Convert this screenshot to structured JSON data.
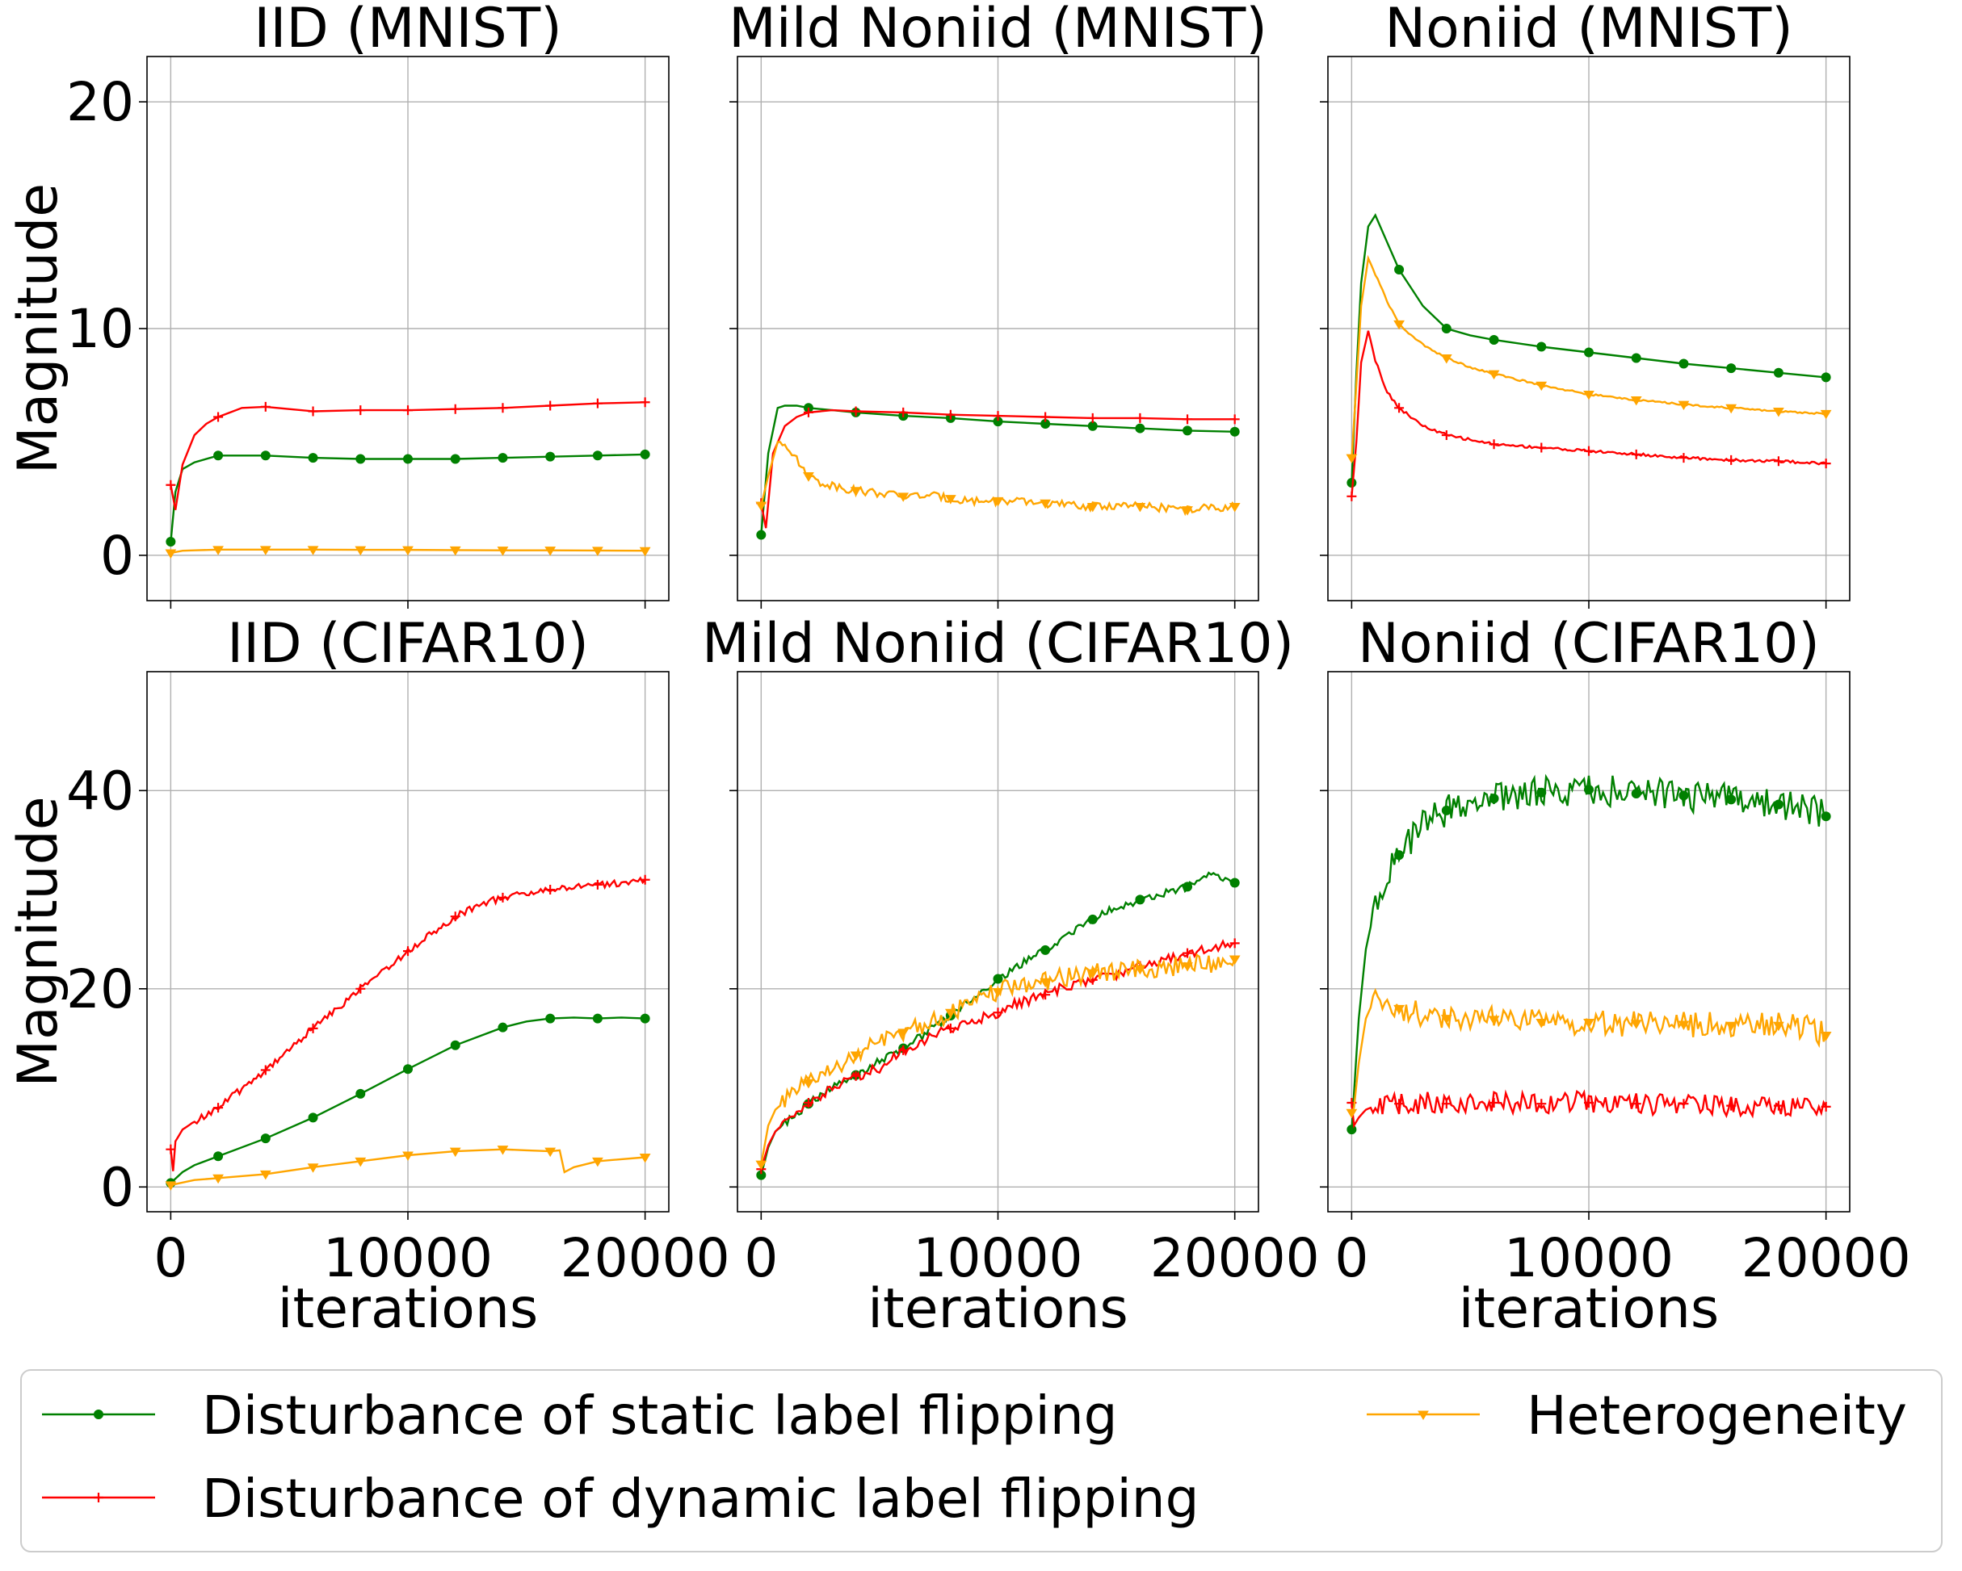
{
  "chart_data": {
    "type": "line",
    "layout": "2x3 grid of line plots",
    "colors": {
      "static": "#008000",
      "dynamic": "#ff0000",
      "heterogeneity": "#ffa500"
    },
    "legend": {
      "position": "bottom",
      "entries": [
        {
          "key": "static",
          "label": "Disturbance of static label flipping"
        },
        {
          "key": "heterogeneity",
          "label": "Heterogeneity"
        },
        {
          "key": "dynamic",
          "label": "Disturbance of dynamic label flipping"
        }
      ]
    },
    "rows": [
      {
        "ylabel": "Magnitude",
        "yticks": [
          0,
          10,
          20
        ],
        "ylim": [
          -2,
          22
        ]
      },
      {
        "ylabel": "Magnitude",
        "yticks": [
          0,
          20,
          40
        ],
        "ylim": [
          -2.5,
          52
        ]
      }
    ],
    "x_axis": {
      "xlabel": "iterations",
      "xticks": [
        0,
        10000,
        20000
      ],
      "xlim": [
        -1000,
        21000
      ]
    },
    "grid": true,
    "panels": [
      {
        "title": "IID (MNIST)",
        "row": 0,
        "col": 0,
        "series": [
          {
            "key": "static",
            "marker": "circle",
            "x": [
              0,
              200,
              500,
              1000,
              2000,
              3000,
              4000,
              6000,
              8000,
              10000,
              12000,
              14000,
              16000,
              18000,
              20000
            ],
            "y": [
              0.6,
              2.8,
              3.8,
              4.1,
              4.4,
              4.4,
              4.4,
              4.3,
              4.25,
              4.25,
              4.25,
              4.3,
              4.35,
              4.4,
              4.45
            ]
          },
          {
            "key": "dynamic",
            "marker": "plus",
            "x": [
              0,
              200,
              500,
              1000,
              1500,
              2000,
              3000,
              4000,
              6000,
              8000,
              10000,
              12000,
              14000,
              16000,
              18000,
              20000
            ],
            "y": [
              3.1,
              2.0,
              4.0,
              5.3,
              5.8,
              6.1,
              6.5,
              6.55,
              6.35,
              6.4,
              6.4,
              6.45,
              6.5,
              6.6,
              6.7,
              6.75
            ]
          },
          {
            "key": "heterogeneity",
            "marker": "triangle",
            "x": [
              0,
              500,
              1000,
              2000,
              4000,
              6000,
              8000,
              10000,
              12000,
              14000,
              16000,
              18000,
              20000
            ],
            "y": [
              0.1,
              0.2,
              0.22,
              0.25,
              0.25,
              0.25,
              0.24,
              0.24,
              0.23,
              0.22,
              0.22,
              0.21,
              0.2
            ]
          }
        ]
      },
      {
        "title": "Mild Noniid (MNIST)",
        "row": 0,
        "col": 1,
        "series": [
          {
            "key": "static",
            "marker": "circle",
            "x": [
              0,
              300,
              700,
              1000,
              1500,
              2000,
              3000,
              4000,
              6000,
              8000,
              10000,
              12000,
              14000,
              16000,
              18000,
              20000
            ],
            "y": [
              0.9,
              4.5,
              6.5,
              6.6,
              6.6,
              6.5,
              6.4,
              6.3,
              6.15,
              6.05,
              5.9,
              5.8,
              5.7,
              5.6,
              5.5,
              5.45
            ]
          },
          {
            "key": "dynamic",
            "marker": "plus",
            "x": [
              0,
              200,
              500,
              1000,
              1500,
              2000,
              3000,
              4000,
              6000,
              8000,
              10000,
              12000,
              14000,
              16000,
              18000,
              20000
            ],
            "y": [
              2.3,
              1.2,
              4.5,
              5.7,
              6.1,
              6.3,
              6.4,
              6.35,
              6.3,
              6.2,
              6.15,
              6.1,
              6.05,
              6.05,
              6.0,
              6.0
            ]
          },
          {
            "key": "heterogeneity",
            "marker": "triangle",
            "x": [
              0,
              300,
              700,
              1000,
              1500,
              2000,
              2500,
              3000,
              4000,
              5000,
              6000,
              7000,
              8000,
              9000,
              10000,
              11000,
              12000,
              13000,
              14000,
              15000,
              16000,
              17000,
              18000,
              19000,
              20000
            ],
            "y": [
              2.2,
              3.5,
              5.0,
              5.0,
              4.2,
              3.5,
              3.2,
              3.1,
              2.85,
              2.75,
              2.6,
              2.65,
              2.5,
              2.4,
              2.4,
              2.35,
              2.3,
              2.2,
              2.15,
              2.2,
              2.15,
              2.1,
              2.0,
              2.1,
              2.15
            ]
          }
        ]
      },
      {
        "title": "Noniid (MNIST)",
        "row": 0,
        "col": 2,
        "series": [
          {
            "key": "static",
            "marker": "circle",
            "x": [
              0,
              200,
              400,
              700,
              1000,
              1500,
              2000,
              2500,
              3000,
              4000,
              5000,
              6000,
              8000,
              10000,
              12000,
              14000,
              16000,
              18000,
              20000
            ],
            "y": [
              3.2,
              8.0,
              12.0,
              14.5,
              15.0,
              13.8,
              12.6,
              11.8,
              11.0,
              10.0,
              9.7,
              9.5,
              9.2,
              8.95,
              8.7,
              8.45,
              8.25,
              8.05,
              7.85
            ]
          },
          {
            "key": "dynamic",
            "marker": "plus",
            "x": [
              0,
              200,
              400,
              700,
              1000,
              1500,
              2000,
              2500,
              3000,
              4000,
              5000,
              6000,
              8000,
              10000,
              12000,
              14000,
              16000,
              18000,
              20000
            ],
            "y": [
              2.6,
              5.0,
              8.5,
              9.9,
              8.6,
              7.2,
              6.5,
              6.1,
              5.7,
              5.3,
              5.1,
              4.9,
              4.75,
              4.6,
              4.45,
              4.3,
              4.2,
              4.15,
              4.05
            ]
          },
          {
            "key": "heterogeneity",
            "marker": "triangle",
            "x": [
              0,
              200,
              400,
              700,
              1000,
              1500,
              2000,
              2500,
              3000,
              4000,
              5000,
              6000,
              8000,
              10000,
              12000,
              14000,
              16000,
              18000,
              20000
            ],
            "y": [
              4.3,
              7.5,
              11.0,
              13.1,
              12.4,
              11.2,
              10.2,
              9.7,
              9.3,
              8.7,
              8.3,
              8.0,
              7.5,
              7.1,
              6.85,
              6.65,
              6.5,
              6.35,
              6.25
            ]
          }
        ]
      },
      {
        "title": "IID (CIFAR10)",
        "row": 1,
        "col": 0,
        "series": [
          {
            "key": "static",
            "marker": "circle",
            "x": [
              0,
              500,
              1000,
              2000,
              4000,
              6000,
              8000,
              10000,
              12000,
              14000,
              15000,
              16000,
              17000,
              18000,
              19000,
              20000
            ],
            "y": [
              0.4,
              1.5,
              2.2,
              3.1,
              4.9,
              7.0,
              9.4,
              11.9,
              14.3,
              16.1,
              16.7,
              17.0,
              17.1,
              17.0,
              17.1,
              17.0
            ]
          },
          {
            "key": "dynamic",
            "marker": "plus",
            "x": [
              0,
              100,
              200,
              500,
              1000,
              2000,
              4000,
              6000,
              8000,
              10000,
              11000,
              12000,
              13000,
              14000,
              15000,
              16000,
              17000,
              18000,
              19000,
              20000
            ],
            "y": [
              3.8,
              1.6,
              4.6,
              5.8,
              6.6,
              8.0,
              11.8,
              16.0,
              20.0,
              23.8,
              25.6,
              27.3,
              28.5,
              29.2,
              29.6,
              30.0,
              30.3,
              30.5,
              30.7,
              31.0
            ]
          },
          {
            "key": "heterogeneity",
            "marker": "triangle",
            "x": [
              0,
              1000,
              2000,
              4000,
              6000,
              8000,
              10000,
              12000,
              14000,
              15000,
              16000,
              16400,
              16600,
              17000,
              18000,
              20000
            ],
            "y": [
              0.2,
              0.7,
              0.9,
              1.3,
              2.0,
              2.6,
              3.2,
              3.6,
              3.8,
              3.7,
              3.6,
              3.7,
              1.5,
              2.0,
              2.6,
              3.0
            ]
          }
        ]
      },
      {
        "title": "Mild Noniid (CIFAR10)",
        "row": 1,
        "col": 1,
        "series": [
          {
            "key": "static",
            "marker": "circle",
            "x": [
              0,
              300,
              600,
              1000,
              2000,
              3000,
              4000,
              5000,
              6000,
              7000,
              8000,
              9000,
              10000,
              11000,
              12000,
              13000,
              14000,
              15000,
              16000,
              17000,
              18000,
              19000,
              20000
            ],
            "y": [
              1.2,
              4.0,
              5.6,
              6.4,
              8.4,
              10.0,
              11.3,
              12.7,
              14.0,
              15.6,
              17.3,
              19.2,
              21.0,
              22.5,
              23.9,
              25.5,
              27.0,
              28.2,
              29.0,
              29.6,
              30.3,
              31.5,
              30.7
            ]
          },
          {
            "key": "dynamic",
            "marker": "plus",
            "x": [
              0,
              300,
              600,
              1000,
              2000,
              3000,
              4000,
              5000,
              6000,
              7000,
              8000,
              9000,
              10000,
              11000,
              12000,
              13000,
              14000,
              15000,
              16000,
              17000,
              18000,
              19000,
              20000
            ],
            "y": [
              1.8,
              4.2,
              5.6,
              6.5,
              8.5,
              9.9,
              11.2,
              12.0,
              13.8,
              14.9,
              16.0,
              16.8,
              17.6,
              18.7,
              19.4,
              20.3,
              20.9,
              21.5,
              22.3,
              23.0,
              23.6,
              24.2,
              24.6
            ]
          },
          {
            "key": "heterogeneity",
            "marker": "triangle",
            "x": [
              0,
              300,
              600,
              1000,
              2000,
              3000,
              4000,
              5000,
              6000,
              7000,
              8000,
              9000,
              10000,
              11000,
              12000,
              13000,
              14000,
              15000,
              16000,
              17000,
              18000,
              19000,
              20000
            ],
            "y": [
              2.3,
              6.2,
              7.8,
              8.6,
              10.5,
              11.8,
              13.3,
              14.6,
              15.6,
              16.6,
              17.6,
              18.6,
              19.7,
              20.5,
              20.7,
              21.3,
              21.6,
              21.7,
              22.0,
              22.2,
              22.3,
              22.6,
              23.0
            ]
          }
        ]
      },
      {
        "title": "Noniid (CIFAR10)",
        "row": 1,
        "col": 2,
        "series": [
          {
            "key": "static",
            "marker": "circle",
            "x": [
              0,
              100,
              300,
              600,
              1000,
              1500,
              2000,
              2500,
              3000,
              4000,
              5000,
              6000,
              7000,
              8000,
              9000,
              10000,
              11000,
              12000,
              13000,
              14000,
              15000,
              16000,
              17000,
              18000,
              19000,
              20000
            ],
            "y": [
              5.8,
              9.5,
              17.0,
              24.0,
              28.5,
              31.5,
              33.5,
              35.0,
              36.5,
              38.0,
              38.8,
              39.2,
              39.6,
              39.8,
              40.0,
              40.1,
              40.0,
              39.7,
              39.6,
              39.5,
              39.3,
              39.1,
              38.9,
              38.6,
              38.3,
              37.4
            ]
          },
          {
            "key": "dynamic",
            "marker": "plus",
            "x": [
              0,
              100,
              300,
              600,
              1000,
              2000,
              3000,
              4000,
              5000,
              6000,
              7000,
              8000,
              9000,
              10000,
              11000,
              12000,
              13000,
              14000,
              15000,
              16000,
              17000,
              18000,
              19000,
              20000
            ],
            "y": [
              8.5,
              6.2,
              7.0,
              7.8,
              8.2,
              8.4,
              8.5,
              8.4,
              8.6,
              8.5,
              8.5,
              8.4,
              8.6,
              8.5,
              8.3,
              8.4,
              8.3,
              8.4,
              8.3,
              8.2,
              8.3,
              8.2,
              8.3,
              8.1
            ]
          },
          {
            "key": "heterogeneity",
            "marker": "triangle",
            "x": [
              0,
              100,
              300,
              600,
              1000,
              1500,
              2000,
              3000,
              4000,
              5000,
              6000,
              7000,
              8000,
              9000,
              10000,
              11000,
              12000,
              13000,
              14000,
              15000,
              16000,
              17000,
              18000,
              19000,
              20000
            ],
            "y": [
              7.5,
              8.0,
              12.5,
              17.0,
              19.2,
              18.7,
              18.0,
              17.4,
              17.0,
              16.8,
              16.9,
              16.7,
              16.6,
              16.6,
              16.6,
              16.5,
              16.5,
              16.5,
              16.4,
              16.4,
              16.3,
              16.3,
              16.3,
              16.3,
              15.3
            ]
          }
        ]
      }
    ]
  }
}
